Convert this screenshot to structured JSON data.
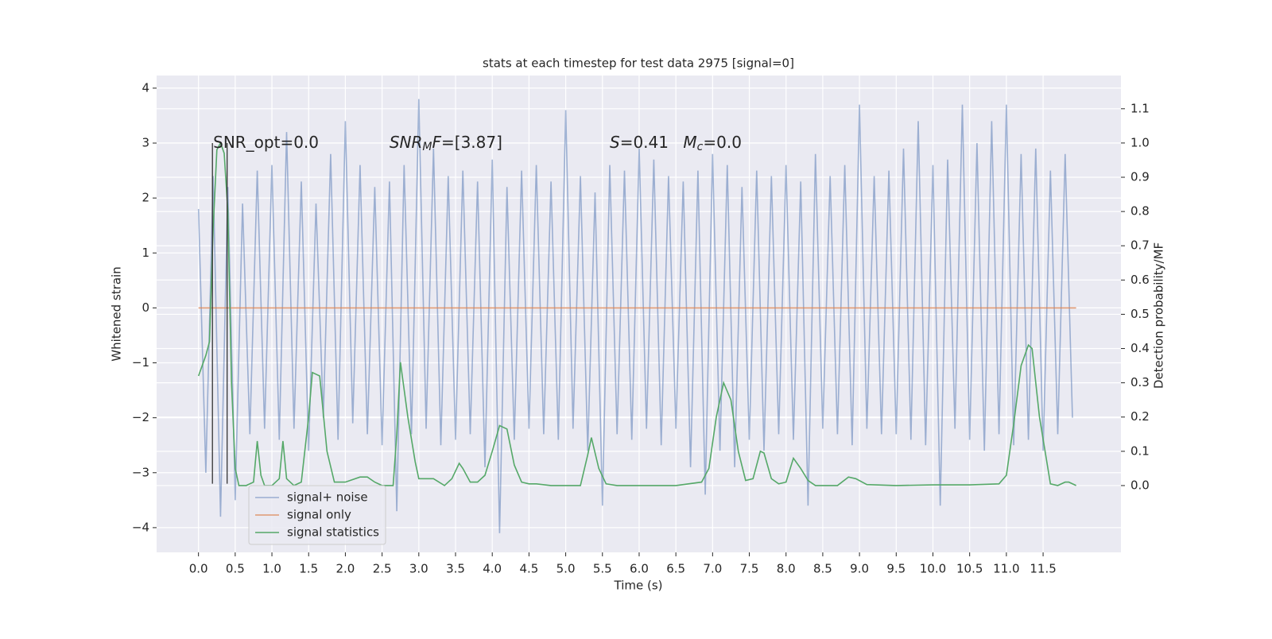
{
  "chart_data": {
    "type": "line",
    "title": "stats at each timestep for test data 2975 [signal=0]",
    "x_label": "Time (s)",
    "y_label": "Whitened strain",
    "y2_label": "Detection probability/MF",
    "xlim": [
      -0.57,
      12.56
    ],
    "ylim": [
      -4.45,
      4.23
    ],
    "y2lim": [
      -0.195,
      1.197
    ],
    "xticks": [
      {
        "value": 0,
        "label": "0.0"
      },
      {
        "value": 0.5,
        "label": "0.5"
      },
      {
        "value": 1,
        "label": "1.0"
      },
      {
        "value": 1.5,
        "label": "1.5"
      },
      {
        "value": 2,
        "label": "2.0"
      },
      {
        "value": 2.5,
        "label": "2.5"
      },
      {
        "value": 3,
        "label": "3.0"
      },
      {
        "value": 3.5,
        "label": "3.5"
      },
      {
        "value": 4,
        "label": "4.0"
      },
      {
        "value": 4.5,
        "label": "4.5"
      },
      {
        "value": 5,
        "label": "5.0"
      },
      {
        "value": 5.5,
        "label": "5.5"
      },
      {
        "value": 6,
        "label": "6.0"
      },
      {
        "value": 6.5,
        "label": "6.5"
      },
      {
        "value": 7,
        "label": "7.0"
      },
      {
        "value": 7.5,
        "label": "7.5"
      },
      {
        "value": 8,
        "label": "8.0"
      },
      {
        "value": 8.5,
        "label": "8.5"
      },
      {
        "value": 9,
        "label": "9.0"
      },
      {
        "value": 9.5,
        "label": "9.5"
      },
      {
        "value": 10,
        "label": "10.0"
      },
      {
        "value": 10.5,
        "label": "10.5"
      },
      {
        "value": 11,
        "label": "11.0"
      },
      {
        "value": 11.5,
        "label": "11.5"
      }
    ],
    "yticks": [
      {
        "value": -4,
        "label": "−4"
      },
      {
        "value": -3,
        "label": "−3"
      },
      {
        "value": -2,
        "label": "−2"
      },
      {
        "value": -1,
        "label": "−1"
      },
      0,
      1,
      2,
      3,
      4
    ],
    "y2ticks": [
      {
        "value": 0,
        "label": "0.0"
      },
      {
        "value": 0.1,
        "label": "0.1"
      },
      {
        "value": 0.2,
        "label": "0.2"
      },
      {
        "value": 0.3,
        "label": "0.3"
      },
      {
        "value": 0.4,
        "label": "0.4"
      },
      {
        "value": 0.5,
        "label": "0.5"
      },
      {
        "value": 0.6,
        "label": "0.6"
      },
      {
        "value": 0.7,
        "label": "0.7"
      },
      {
        "value": 0.8,
        "label": "0.8"
      },
      {
        "value": 0.9,
        "label": "0.9"
      },
      {
        "value": 1.0,
        "label": "1.0"
      },
      {
        "value": 1.1,
        "label": "1.1"
      }
    ],
    "grid": true,
    "legend": "lower left",
    "series": [
      {
        "name": "signal+ noise",
        "color": "#4c72b0",
        "opacity": 0.5,
        "axis": "y",
        "x": [
          0,
          0.1,
          0.2,
          0.3,
          0.4,
          0.5,
          0.6,
          0.7,
          0.8,
          0.9,
          1,
          1.1,
          1.2,
          1.3,
          1.4,
          1.5,
          1.6,
          1.7,
          1.8,
          1.9,
          2,
          2.1,
          2.2,
          2.3,
          2.4,
          2.5,
          2.6,
          2.7,
          2.8,
          2.9,
          3,
          3.1,
          3.2,
          3.3,
          3.4,
          3.5,
          3.6,
          3.7,
          3.8,
          3.9,
          4,
          4.1,
          4.2,
          4.3,
          4.4,
          4.5,
          4.6,
          4.7,
          4.8,
          4.9,
          5,
          5.1,
          5.2,
          5.3,
          5.4,
          5.5,
          5.6,
          5.7,
          5.8,
          5.9,
          6,
          6.1,
          6.2,
          6.3,
          6.4,
          6.5,
          6.6,
          6.7,
          6.8,
          6.9,
          7,
          7.1,
          7.2,
          7.3,
          7.4,
          7.5,
          7.6,
          7.7,
          7.8,
          7.9,
          8,
          8.1,
          8.2,
          8.3,
          8.4,
          8.5,
          8.6,
          8.7,
          8.8,
          8.9,
          9,
          9.1,
          9.2,
          9.3,
          9.4,
          9.5,
          9.6,
          9.7,
          9.8,
          9.9,
          10,
          10.1,
          10.2,
          10.3,
          10.4,
          10.5,
          10.6,
          10.7,
          10.8,
          10.9,
          11,
          11.1,
          11.2,
          11.3,
          11.4,
          11.5,
          11.6,
          11.7,
          11.8,
          11.9
        ],
        "values": [
          1.8,
          -3.0,
          2.4,
          -3.8,
          2.2,
          -3.5,
          1.9,
          -2.3,
          2.5,
          -2.2,
          2.6,
          -2.4,
          3.2,
          -2.2,
          2.3,
          -2.6,
          1.9,
          -2.0,
          2.8,
          -2.4,
          3.4,
          -2.1,
          2.6,
          -2.3,
          2.2,
          -2.5,
          2.3,
          -3.7,
          2.6,
          -2.3,
          3.8,
          -2.2,
          2.9,
          -2.5,
          2.4,
          -2.4,
          2.5,
          -2.3,
          2.3,
          -2.9,
          2.7,
          -4.1,
          2.2,
          -2.4,
          2.5,
          -2.2,
          2.6,
          -2.3,
          2.3,
          -2.4,
          3.6,
          -2.2,
          2.4,
          -2.6,
          2.1,
          -3.6,
          2.6,
          -2.3,
          2.5,
          -2.4,
          2.9,
          -2.2,
          2.7,
          -2.5,
          2.4,
          -2.2,
          2.3,
          -2.9,
          2.5,
          -3.4,
          2.8,
          -2.6,
          2.6,
          -2.9,
          2.2,
          -2.4,
          2.5,
          -2.6,
          2.4,
          -2.3,
          2.6,
          -2.4,
          2.3,
          -3.6,
          2.8,
          -2.2,
          2.4,
          -2.3,
          2.6,
          -2.5,
          3.7,
          -2.2,
          2.4,
          -2.3,
          2.5,
          -2.3,
          2.9,
          -2.4,
          3.4,
          -2.5,
          2.6,
          -3.6,
          2.7,
          -2.2,
          3.7,
          -2.4,
          3.0,
          -2.6,
          3.4,
          -2.3,
          3.7,
          -2.5,
          2.8,
          -2.4,
          2.9,
          -2.6,
          2.5,
          -2.3,
          2.8,
          -2.0
        ]
      },
      {
        "name": "signal only",
        "color": "#dd8452",
        "opacity": 0.8,
        "axis": "y",
        "x": [
          0,
          11.95
        ],
        "values": [
          0,
          0
        ]
      },
      {
        "name": "signal statistics",
        "color": "#55a868",
        "opacity": 1,
        "axis": "y2",
        "x": [
          0,
          0.1,
          0.15,
          0.2,
          0.25,
          0.3,
          0.35,
          0.4,
          0.45,
          0.5,
          0.55,
          0.65,
          0.75,
          0.8,
          0.85,
          0.9,
          1.0,
          1.1,
          1.15,
          1.2,
          1.3,
          1.4,
          1.5,
          1.55,
          1.65,
          1.75,
          1.85,
          2.0,
          2.2,
          2.3,
          2.4,
          2.5,
          2.65,
          2.7,
          2.75,
          2.85,
          2.95,
          3.0,
          3.2,
          3.35,
          3.45,
          3.55,
          3.6,
          3.7,
          3.8,
          3.9,
          4.0,
          4.1,
          4.2,
          4.3,
          4.4,
          4.5,
          4.6,
          4.8,
          5.0,
          5.2,
          5.3,
          5.35,
          5.45,
          5.55,
          5.7,
          6.0,
          6.5,
          6.85,
          6.95,
          7.05,
          7.15,
          7.25,
          7.35,
          7.45,
          7.55,
          7.65,
          7.7,
          7.8,
          7.9,
          8.0,
          8.1,
          8.2,
          8.3,
          8.4,
          8.7,
          8.85,
          8.95,
          9.1,
          9.5,
          10.0,
          10.5,
          10.9,
          11.0,
          11.1,
          11.2,
          11.3,
          11.35,
          11.45,
          11.55,
          11.6,
          11.7,
          11.8,
          11.85,
          11.95
        ],
        "values": [
          0.32,
          0.38,
          0.42,
          0.75,
          0.98,
          1.0,
          0.97,
          0.8,
          0.3,
          0.05,
          0.0,
          0.0,
          0.01,
          0.13,
          0.03,
          0.0,
          0.0,
          0.02,
          0.13,
          0.02,
          0.0,
          0.01,
          0.2,
          0.33,
          0.32,
          0.1,
          0.01,
          0.01,
          0.025,
          0.025,
          0.01,
          0.0,
          0.0,
          0.15,
          0.36,
          0.2,
          0.07,
          0.02,
          0.02,
          0.0,
          0.02,
          0.065,
          0.05,
          0.01,
          0.01,
          0.03,
          0.1,
          0.175,
          0.165,
          0.06,
          0.01,
          0.005,
          0.005,
          0.0,
          0.0,
          0.0,
          0.09,
          0.14,
          0.05,
          0.005,
          0.0,
          0.0,
          0.0,
          0.01,
          0.05,
          0.2,
          0.3,
          0.25,
          0.1,
          0.015,
          0.02,
          0.1,
          0.095,
          0.02,
          0.005,
          0.01,
          0.08,
          0.05,
          0.015,
          0.0,
          0.0,
          0.025,
          0.02,
          0.003,
          0.0,
          0.002,
          0.002,
          0.005,
          0.03,
          0.18,
          0.35,
          0.41,
          0.4,
          0.2,
          0.07,
          0.005,
          0.0,
          0.01,
          0.01,
          0.0
        ]
      }
    ],
    "vertical_lines": {
      "color": "#333333",
      "x": [
        0.19,
        0.39
      ],
      "y": [
        -3.2,
        3.0
      ]
    },
    "annotations": [
      {
        "x": 0.2,
        "y": 3.0,
        "parts": [
          {
            "text": "SNR_opt=0.0"
          }
        ]
      },
      {
        "x": 2.6,
        "y": 3.0,
        "parts": [
          {
            "text": "SNR",
            "italic": true
          },
          {
            "text": "M",
            "italic": true,
            "sub": true
          },
          {
            "text": "F",
            "italic": true
          },
          {
            "text": "=[3.87]"
          }
        ]
      },
      {
        "x": 5.6,
        "y": 3.0,
        "parts": [
          {
            "text": "S",
            "italic": true
          },
          {
            "text": "=0.41"
          }
        ]
      },
      {
        "x": 6.6,
        "y": 3.0,
        "parts": [
          {
            "text": "M",
            "italic": true
          },
          {
            "text": "c",
            "italic": true,
            "sub": true
          },
          {
            "text": "=0.0"
          }
        ]
      }
    ]
  }
}
